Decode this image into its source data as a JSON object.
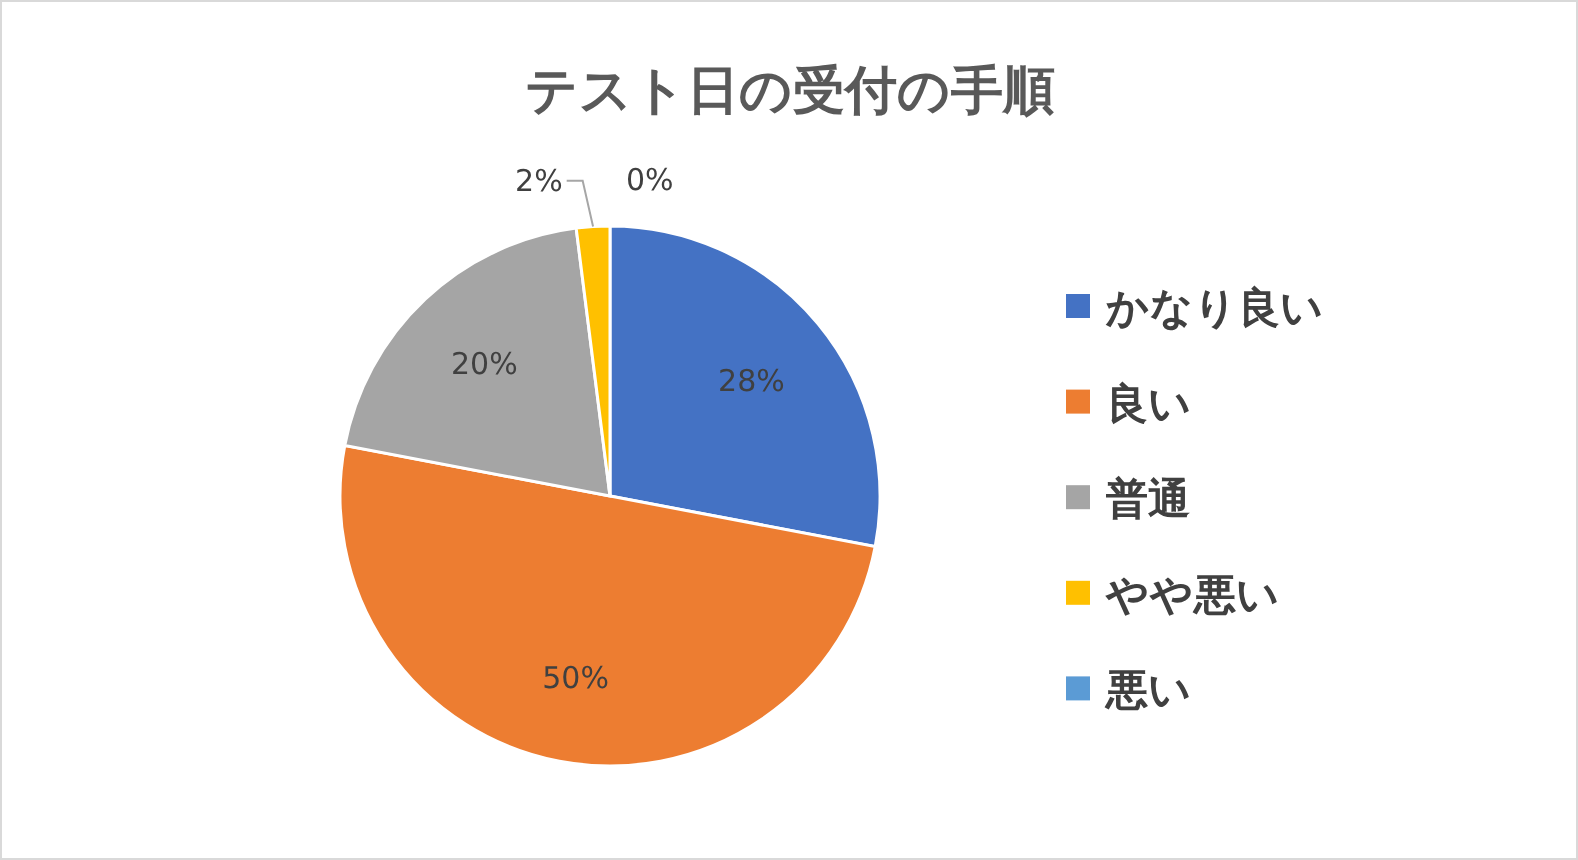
{
  "chart_data": {
    "type": "pie",
    "title": "テスト日の受付の手順",
    "categories": [
      "かなり良い",
      "良い",
      "普通",
      "やや悪い",
      "悪い"
    ],
    "values": [
      28,
      50,
      20,
      2,
      0
    ],
    "colors": [
      "#4472c4",
      "#ed7d31",
      "#a5a5a5",
      "#ffc000",
      "#5b9bd5"
    ],
    "value_labels": [
      "28%",
      "50%",
      "20%",
      "2%",
      "0%"
    ],
    "legend": "right"
  }
}
